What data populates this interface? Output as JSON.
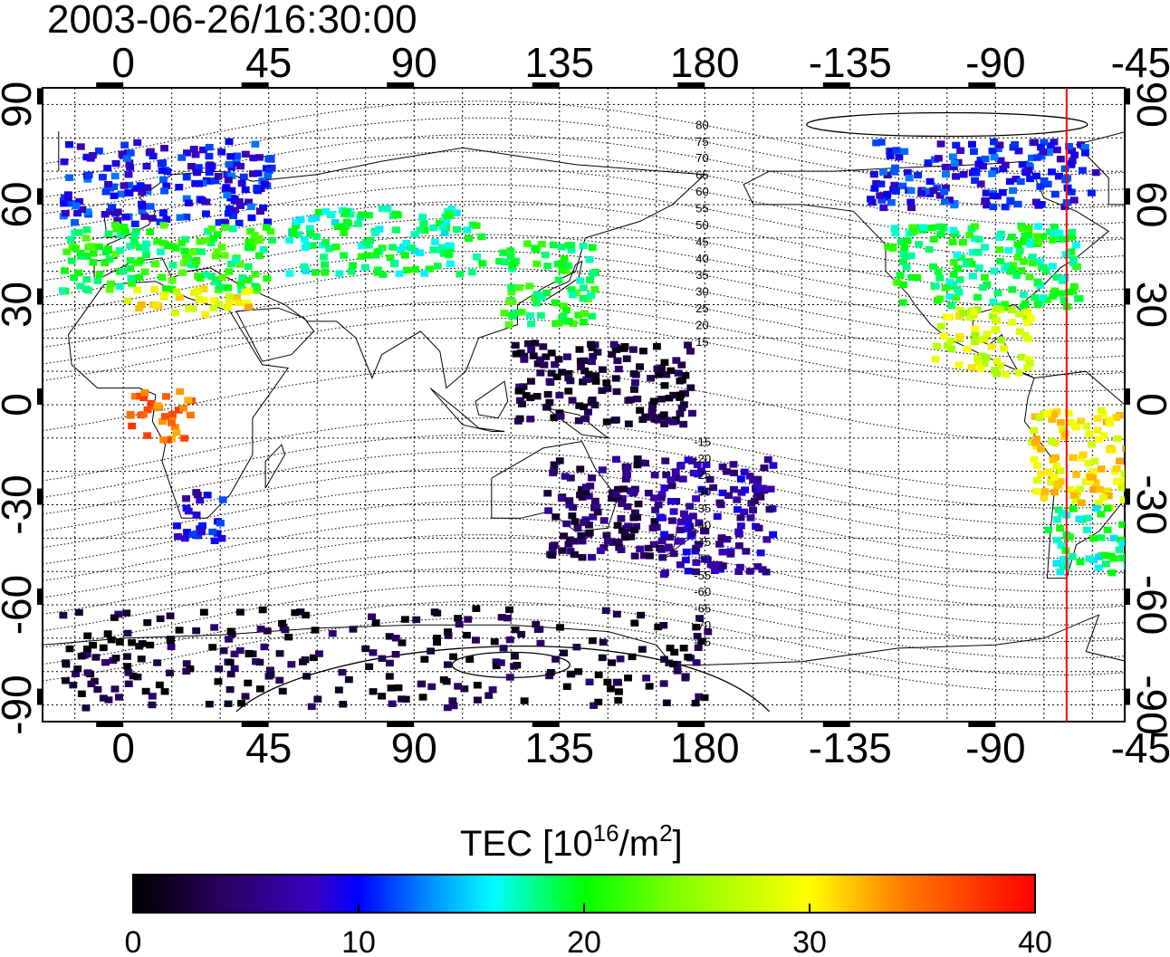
{
  "title": "2003-06-26/16:30:00",
  "axes": {
    "x_ticks": [
      0,
      45,
      90,
      135,
      180,
      -135,
      -90,
      -45
    ],
    "y_ticks": [
      90,
      60,
      30,
      0,
      -30,
      -60,
      -90
    ],
    "lon_range": [
      -25,
      310
    ],
    "lat_range": [
      -95,
      95
    ]
  },
  "magnetic_labels": {
    "north": [
      "80",
      "75",
      "70",
      "65",
      "60",
      "55",
      "50",
      "45",
      "40",
      "35",
      "30",
      "25",
      "20",
      "15"
    ],
    "south": [
      "-15",
      "-20",
      "-25",
      "-30",
      "-35",
      "-40",
      "-45",
      "-50",
      "-55",
      "-60",
      "-65",
      "-70",
      "-75"
    ]
  },
  "colorbar": {
    "label": "TEC  [10",
    "label_sup1": "16",
    "label_mid": "/m",
    "label_sup2": "2",
    "label_end": "]",
    "ticks": [
      "0",
      "10",
      "20",
      "30",
      "40"
    ],
    "range": [
      0,
      40
    ],
    "colors": [
      "#000000",
      "#3a0070",
      "#0000ff",
      "#00ffff",
      "#00ff00",
      "#ffff00",
      "#ff8000",
      "#ff0000"
    ]
  },
  "marker": {
    "longitude": -68,
    "color": "#ff0000"
  },
  "chart_data": {
    "type": "heatmap",
    "title": "2003-06-26/16:30:00",
    "xlabel": "",
    "ylabel": "",
    "value_label": "TEC [10^16/m^2]",
    "xlim": [
      -25,
      310
    ],
    "ylim": [
      -95,
      95
    ],
    "regions": [
      {
        "lon": [
          -20,
          45
        ],
        "lat": [
          55,
          80
        ],
        "tec": 10
      },
      {
        "lon": [
          -20,
          45
        ],
        "lat": [
          35,
          55
        ],
        "tec": 20
      },
      {
        "lon": [
          0,
          40
        ],
        "lat": [
          28,
          36
        ],
        "tec": 30
      },
      {
        "lon": [
          50,
          110
        ],
        "lat": [
          40,
          60
        ],
        "tec": 18
      },
      {
        "lon": [
          115,
          145
        ],
        "lat": [
          25,
          50
        ],
        "tec": 20
      },
      {
        "lon": [
          -130,
          -60
        ],
        "lat": [
          60,
          80
        ],
        "tec": 10
      },
      {
        "lon": [
          -125,
          -65
        ],
        "lat": [
          30,
          55
        ],
        "tec": 19
      },
      {
        "lon": [
          -110,
          -80
        ],
        "lat": [
          10,
          30
        ],
        "tec": 28
      },
      {
        "lon": [
          -80,
          -40
        ],
        "lat": [
          -30,
          0
        ],
        "tec": 30
      },
      {
        "lon": [
          -75,
          -40
        ],
        "lat": [
          -50,
          -30
        ],
        "tec": 18
      },
      {
        "lon": [
          0,
          20
        ],
        "lat": [
          -10,
          5
        ],
        "tec": 35
      },
      {
        "lon": [
          15,
          30
        ],
        "lat": [
          -40,
          -25
        ],
        "tec": 9
      },
      {
        "lon": [
          130,
          165
        ],
        "lat": [
          -45,
          -15
        ],
        "tec": 4
      },
      {
        "lon": [
          165,
          200
        ],
        "lat": [
          -50,
          -15
        ],
        "tec": 7
      },
      {
        "lon": [
          120,
          175
        ],
        "lat": [
          -5,
          20
        ],
        "tec": 2
      },
      {
        "lon": [
          -20,
          180
        ],
        "lat": [
          -90,
          -60
        ],
        "tec": 2
      }
    ]
  }
}
